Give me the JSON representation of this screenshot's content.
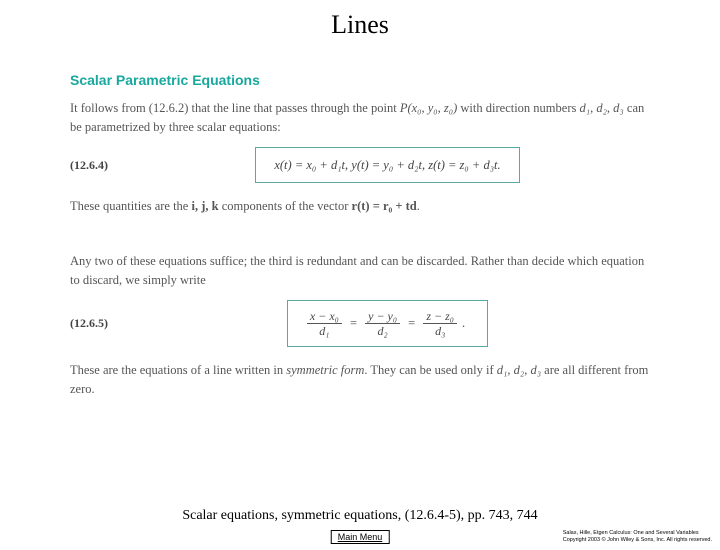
{
  "title": "Lines",
  "section_heading": "Scalar Parametric Equations",
  "para1_a": "It follows from (12.6.2) that the line that passes through the point ",
  "para1_point": "P(x₀, y₀, z₀)",
  "para1_b": " with direction numbers ",
  "para1_d": "d₁, d₂, d₃",
  "para1_c": " can be parametrized by three scalar equations:",
  "eq1_label": "(12.6.4)",
  "eq1": "x(t) = x₀ + d₁t,    y(t) = y₀ + d₂t,    z(t) = z₀ + d₃t.",
  "para2_a": "These quantities are the ",
  "para2_ijk": "i, j, k",
  "para2_b": " components of the vector ",
  "para2_r": "r(t) = r₀ + td",
  "para2_c": ".",
  "para3": "Any two of these equations suffice; the third is redundant and can be discarded. Rather than decide which equation to discard, we simply write",
  "eq2_label": "(12.6.5)",
  "frac1_num": "x − x₀",
  "frac1_den": "d₁",
  "frac2_num": "y − y₀",
  "frac2_den": "d₂",
  "frac3_num": "z − z₀",
  "frac3_den": "d₃",
  "para4_a": "These are the equations of a line written in ",
  "para4_sym": "symmetric form",
  "para4_b": ". They can be used only if ",
  "para4_d": "d₁, d₂, d₃",
  "para4_c": " are all different from zero.",
  "caption": "Scalar equations, symmetric equations, (12.6.4-5), pp. 743, 744",
  "menu": "Main Menu",
  "copy1": "Salas, Hille, Etgen Calculus: One and Several Variables",
  "copy2": "Copyright 2003 © John Wiley & Sons, Inc.  All rights reserved."
}
